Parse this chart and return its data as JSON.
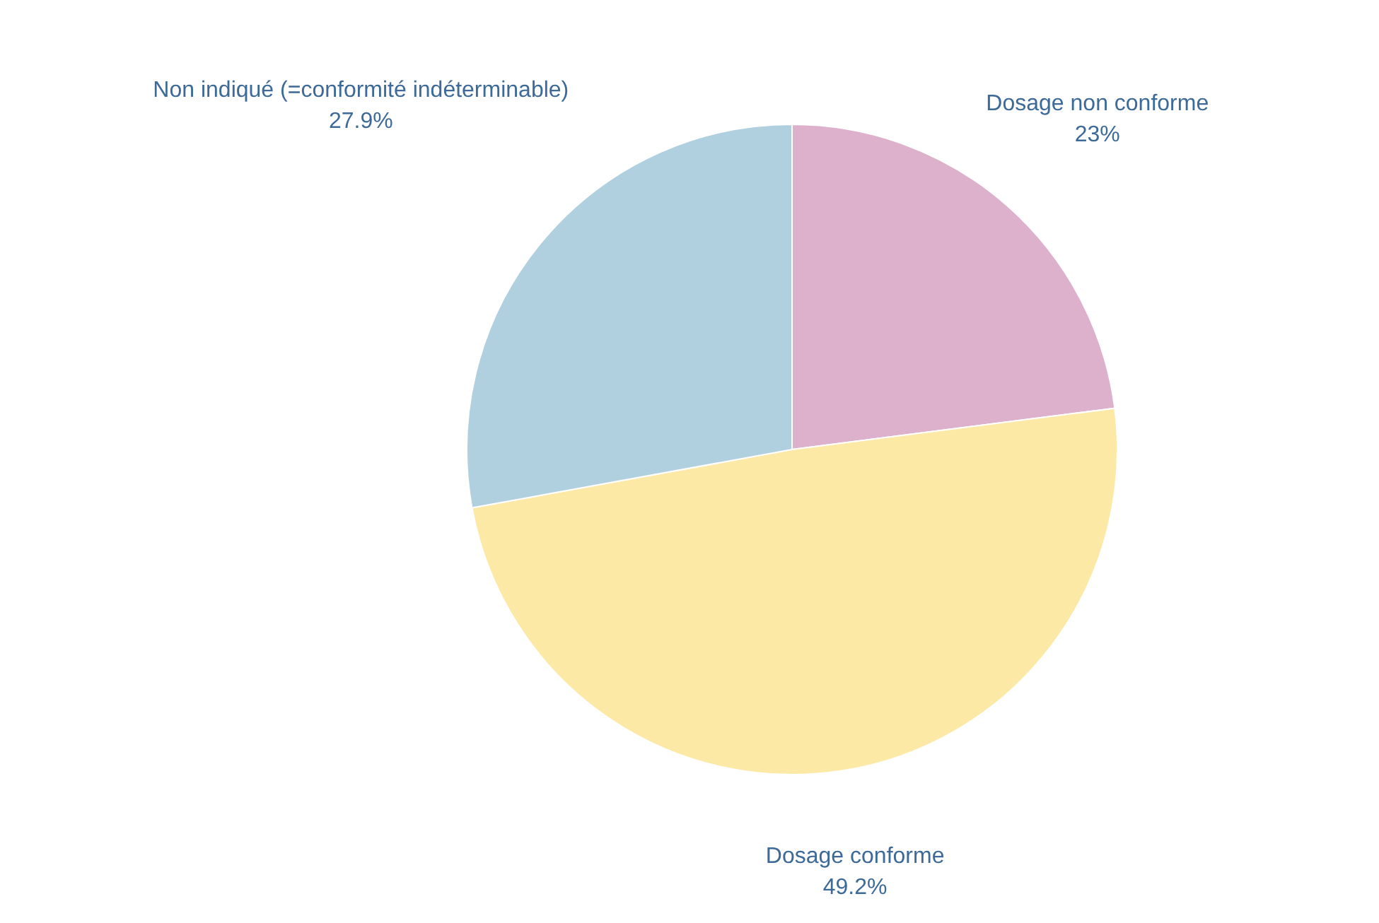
{
  "chart_data": {
    "type": "pie",
    "categories": [
      "Dosage non conforme",
      "Dosage conforme",
      "Non indiqué (=conformité indéterminable)"
    ],
    "values": [
      23,
      49.2,
      27.9
    ],
    "value_labels": [
      "23%",
      "49.2%",
      "27.9%"
    ],
    "colors": [
      "#ddb1cc",
      "#fce9a6",
      "#b0cfdf"
    ]
  }
}
